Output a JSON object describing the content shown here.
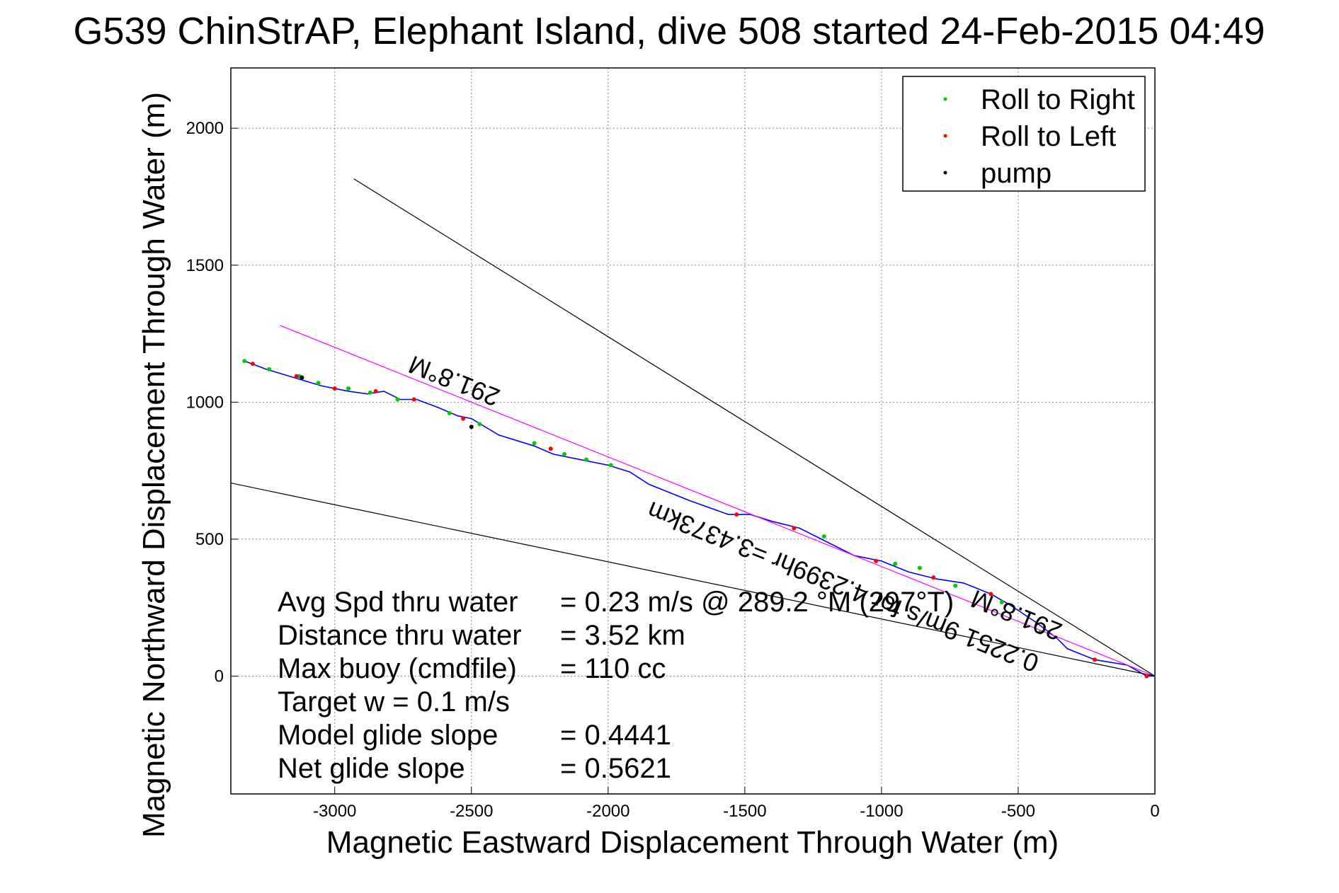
{
  "chart_data": {
    "type": "line",
    "title": "G539 ChinStrAP, Elephant Island, dive 508 started 24-Feb-2015 04:49",
    "xlabel": "Magnetic Eastward Displacement Through Water (m)",
    "ylabel": "Magnetic Northward Displacement Through Water (m)",
    "xlim": [
      -3380,
      0
    ],
    "ylim": [
      -430,
      2220
    ],
    "xticks": [
      -3000,
      -2500,
      -2000,
      -1500,
      -1000,
      -500,
      0
    ],
    "yticks": [
      0,
      500,
      1000,
      1500,
      2000
    ],
    "grid": true,
    "legend_position": "top-right",
    "legend": [
      {
        "label": "Roll to Right",
        "color": "#00cc00"
      },
      {
        "label": "Roll to Left",
        "color": "#ff0000"
      },
      {
        "label": "pump",
        "color": "#000000"
      }
    ],
    "series": [
      {
        "color": "#0000ff",
        "x": [
          0,
          -30,
          -100,
          -220,
          -320,
          -360,
          -440,
          -530,
          -600,
          -700,
          -800,
          -900,
          -1000,
          -1100,
          -1160,
          -1220,
          -1300,
          -1400,
          -1480,
          -1560,
          -1700,
          -1850,
          -1920,
          -2000,
          -2100,
          -2200,
          -2270,
          -2400,
          -2500,
          -2550,
          -2620,
          -2700,
          -2760,
          -2820,
          -2880,
          -2950,
          -3050,
          -3150,
          -3250,
          -3330
        ],
        "y": [
          0,
          0,
          40,
          60,
          100,
          140,
          200,
          260,
          300,
          340,
          355,
          380,
          420,
          440,
          470,
          500,
          540,
          565,
          590,
          590,
          640,
          700,
          745,
          770,
          790,
          810,
          840,
          880,
          940,
          950,
          980,
          1010,
          1010,
          1040,
          1030,
          1040,
          1060,
          1090,
          1120,
          1150
        ]
      },
      {
        "color": "#ff00ff",
        "x": [
          0,
          -3200
        ],
        "y": [
          0,
          1280
        ]
      },
      {
        "color": "#000000",
        "x": [
          0,
          -2930
        ],
        "y": [
          0,
          1815
        ]
      },
      {
        "color": "#000000",
        "x": [
          0,
          -3380
        ],
        "y": [
          0,
          705
        ]
      }
    ],
    "markers": {
      "roll_right": {
        "x": [
          -3330,
          -3240,
          -3130,
          -3060,
          -2950,
          -2870,
          -2770,
          -2580,
          -2470,
          -2270,
          -2160,
          -2080,
          -1990,
          -1210,
          -950,
          -860,
          -730,
          -560,
          -420
        ],
        "y": [
          1150,
          1120,
          1095,
          1070,
          1050,
          1035,
          1010,
          960,
          920,
          850,
          810,
          790,
          770,
          510,
          410,
          395,
          330,
          270,
          160
        ]
      },
      "roll_left": {
        "x": [
          -3300,
          -3140,
          -3000,
          -2850,
          -2710,
          -2530,
          -2210,
          -1530,
          -1320,
          -1020,
          -810,
          -600,
          -220,
          -30
        ],
        "y": [
          1140,
          1095,
          1050,
          1040,
          1010,
          940,
          830,
          590,
          540,
          420,
          360,
          300,
          60,
          0
        ]
      },
      "pump": {
        "x": [
          -3120,
          -2500
        ],
        "y": [
          1090,
          910
        ]
      }
    },
    "annotations": {
      "heading_upper": "291.8°M",
      "heading_lower": "291.8°M",
      "distance_label": "0.2251 9m/s for 4.2399hr =3.4373km",
      "stats_lines": [
        {
          "label": "Avg Spd thru water",
          "value": "=  0.23 m/s @ 289.2 °M (297°T)"
        },
        {
          "label": "Distance thru water",
          "value": "=  3.52 km"
        },
        {
          "label": "Max buoy (cmdfile)",
          "value": "= 110 cc"
        },
        {
          "label": "Target w    = 0.1 m/s",
          "value": ""
        },
        {
          "label": "Model glide slope",
          "value": "= 0.4441"
        },
        {
          "label": "Net glide slope",
          "value": "= 0.5621"
        }
      ]
    }
  }
}
